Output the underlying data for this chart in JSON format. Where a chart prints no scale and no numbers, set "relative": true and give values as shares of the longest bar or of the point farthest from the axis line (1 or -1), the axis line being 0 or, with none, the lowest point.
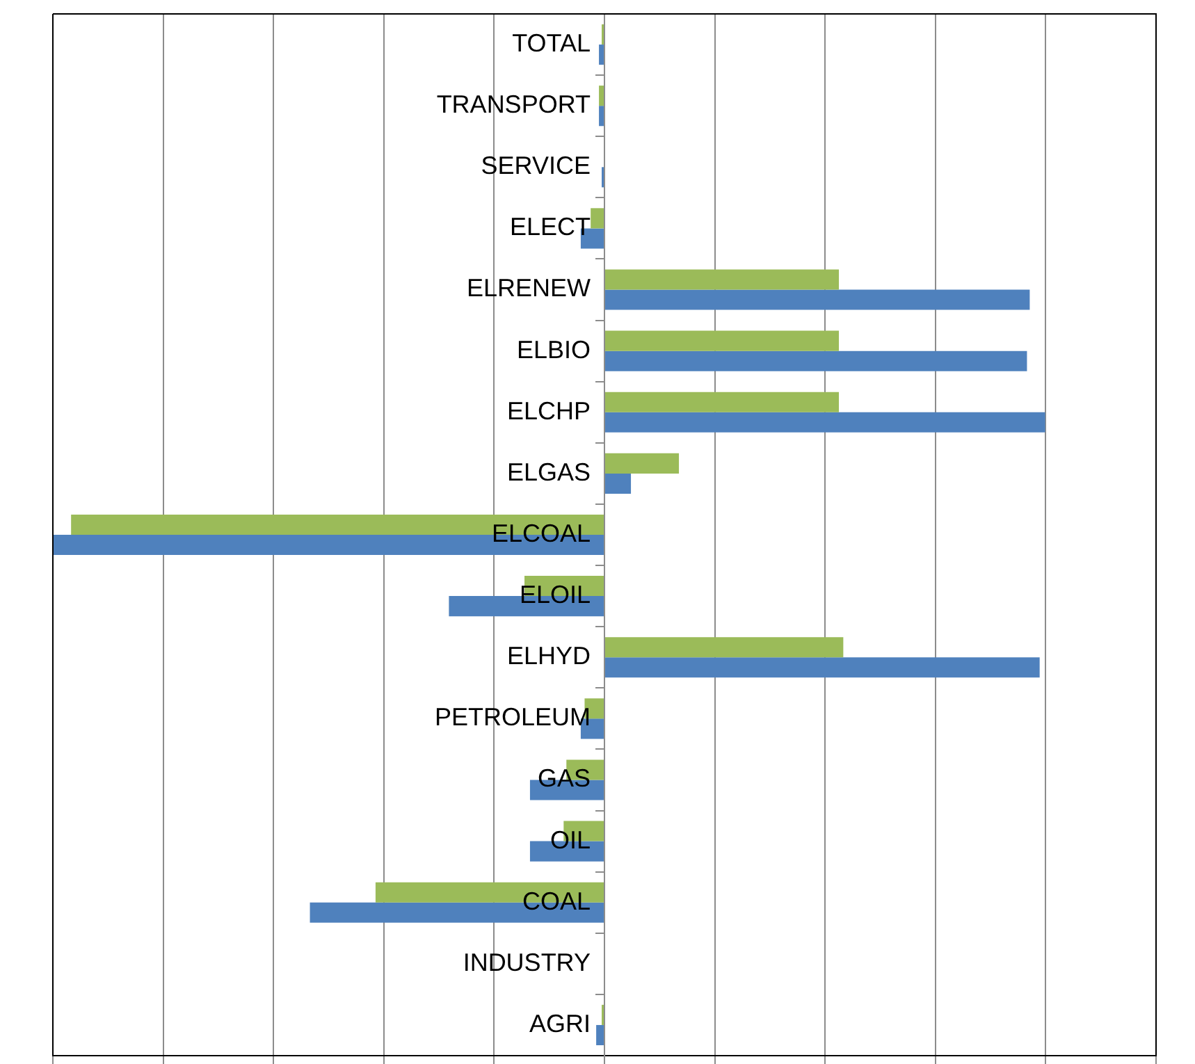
{
  "chart_data": {
    "type": "bar",
    "orientation": "horizontal",
    "relative": true,
    "grid": "x",
    "categories": [
      "TOTAL",
      "TRANSPORT",
      "SERVICE",
      "ELECT",
      "ELRENEW",
      "ELBIO",
      "ELCHP",
      "ELGAS",
      "ELCOAL",
      "ELOIL",
      "ELHYD",
      "PETROLEUM",
      "GAS",
      "OIL",
      "COAL",
      "INDUSTRY",
      "AGRI"
    ],
    "series": [
      {
        "color": "#9bbb59",
        "values": [
          -0.005,
          -0.01,
          0,
          -0.025,
          0.425,
          0.425,
          0.425,
          0.135,
          -0.967,
          -0.145,
          0.433,
          -0.036,
          -0.069,
          -0.074,
          -0.415,
          0,
          -0.005
        ]
      },
      {
        "color": "#4f81bd",
        "values": [
          -0.01,
          -0.01,
          -0.005,
          -0.043,
          0.771,
          0.766,
          0.799,
          0.048,
          -1,
          -0.282,
          0.789,
          -0.043,
          -0.135,
          -0.135,
          -0.534,
          0,
          -0.015
        ]
      }
    ]
  }
}
